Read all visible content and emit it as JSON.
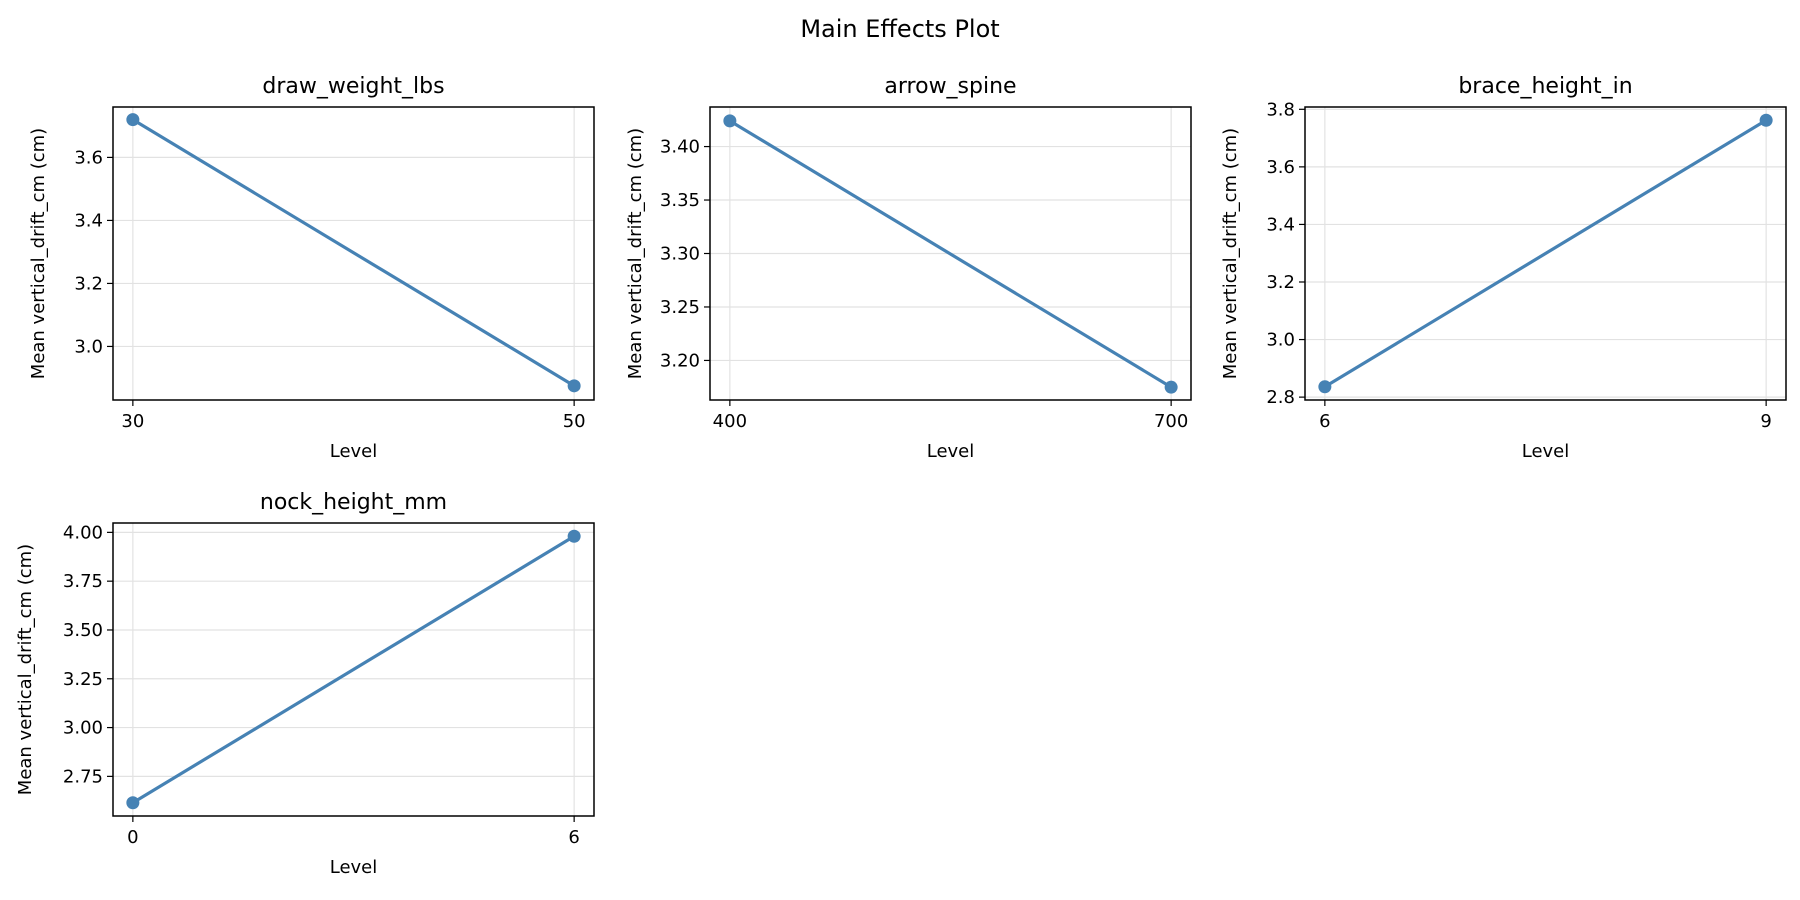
{
  "title": "Main Effects Plot",
  "colors": {
    "series": "#4682b4"
  },
  "chart_data": [
    {
      "type": "line",
      "title": "draw_weight_lbs",
      "xlabel": "Level",
      "ylabel": "Mean vertical_drift_cm (cm)",
      "x": [
        30,
        50
      ],
      "x_tick_labels": [
        "30",
        "50"
      ],
      "y": [
        3.72,
        2.875
      ],
      "ylim": [
        2.83,
        3.76
      ],
      "y_ticks": [
        3.0,
        3.2,
        3.4,
        3.6
      ],
      "y_tick_labels": [
        "3.0",
        "3.2",
        "3.4",
        "3.6"
      ],
      "grid": true
    },
    {
      "type": "line",
      "title": "arrow_spine",
      "xlabel": "Level",
      "ylabel": "Mean vertical_drift_cm (cm)",
      "x": [
        400,
        700
      ],
      "x_tick_labels": [
        "400",
        "700"
      ],
      "y": [
        3.424,
        3.175
      ],
      "ylim": [
        3.163,
        3.437
      ],
      "y_ticks": [
        3.2,
        3.25,
        3.3,
        3.35,
        3.4
      ],
      "y_tick_labels": [
        "3.20",
        "3.25",
        "3.30",
        "3.35",
        "3.40"
      ],
      "grid": true
    },
    {
      "type": "line",
      "title": "brace_height_in",
      "xlabel": "Level",
      "ylabel": "Mean vertical_drift_cm (cm)",
      "x": [
        6,
        9
      ],
      "x_tick_labels": [
        "6",
        "9"
      ],
      "y": [
        2.836,
        3.762
      ],
      "ylim": [
        2.79,
        3.808
      ],
      "y_ticks": [
        2.8,
        3.0,
        3.2,
        3.4,
        3.6,
        3.8
      ],
      "y_tick_labels": [
        "2.8",
        "3.0",
        "3.2",
        "3.4",
        "3.6",
        "3.8"
      ],
      "grid": true
    },
    {
      "type": "line",
      "title": "nock_height_mm",
      "xlabel": "Level",
      "ylabel": "Mean vertical_drift_cm (cm)",
      "x": [
        0,
        6
      ],
      "x_tick_labels": [
        "0",
        "6"
      ],
      "y": [
        2.615,
        3.98
      ],
      "ylim": [
        2.547,
        4.048
      ],
      "y_ticks": [
        2.75,
        3.0,
        3.25,
        3.5,
        3.75,
        4.0
      ],
      "y_tick_labels": [
        "2.75",
        "3.00",
        "3.25",
        "3.50",
        "3.75",
        "4.00"
      ],
      "grid": true
    }
  ]
}
